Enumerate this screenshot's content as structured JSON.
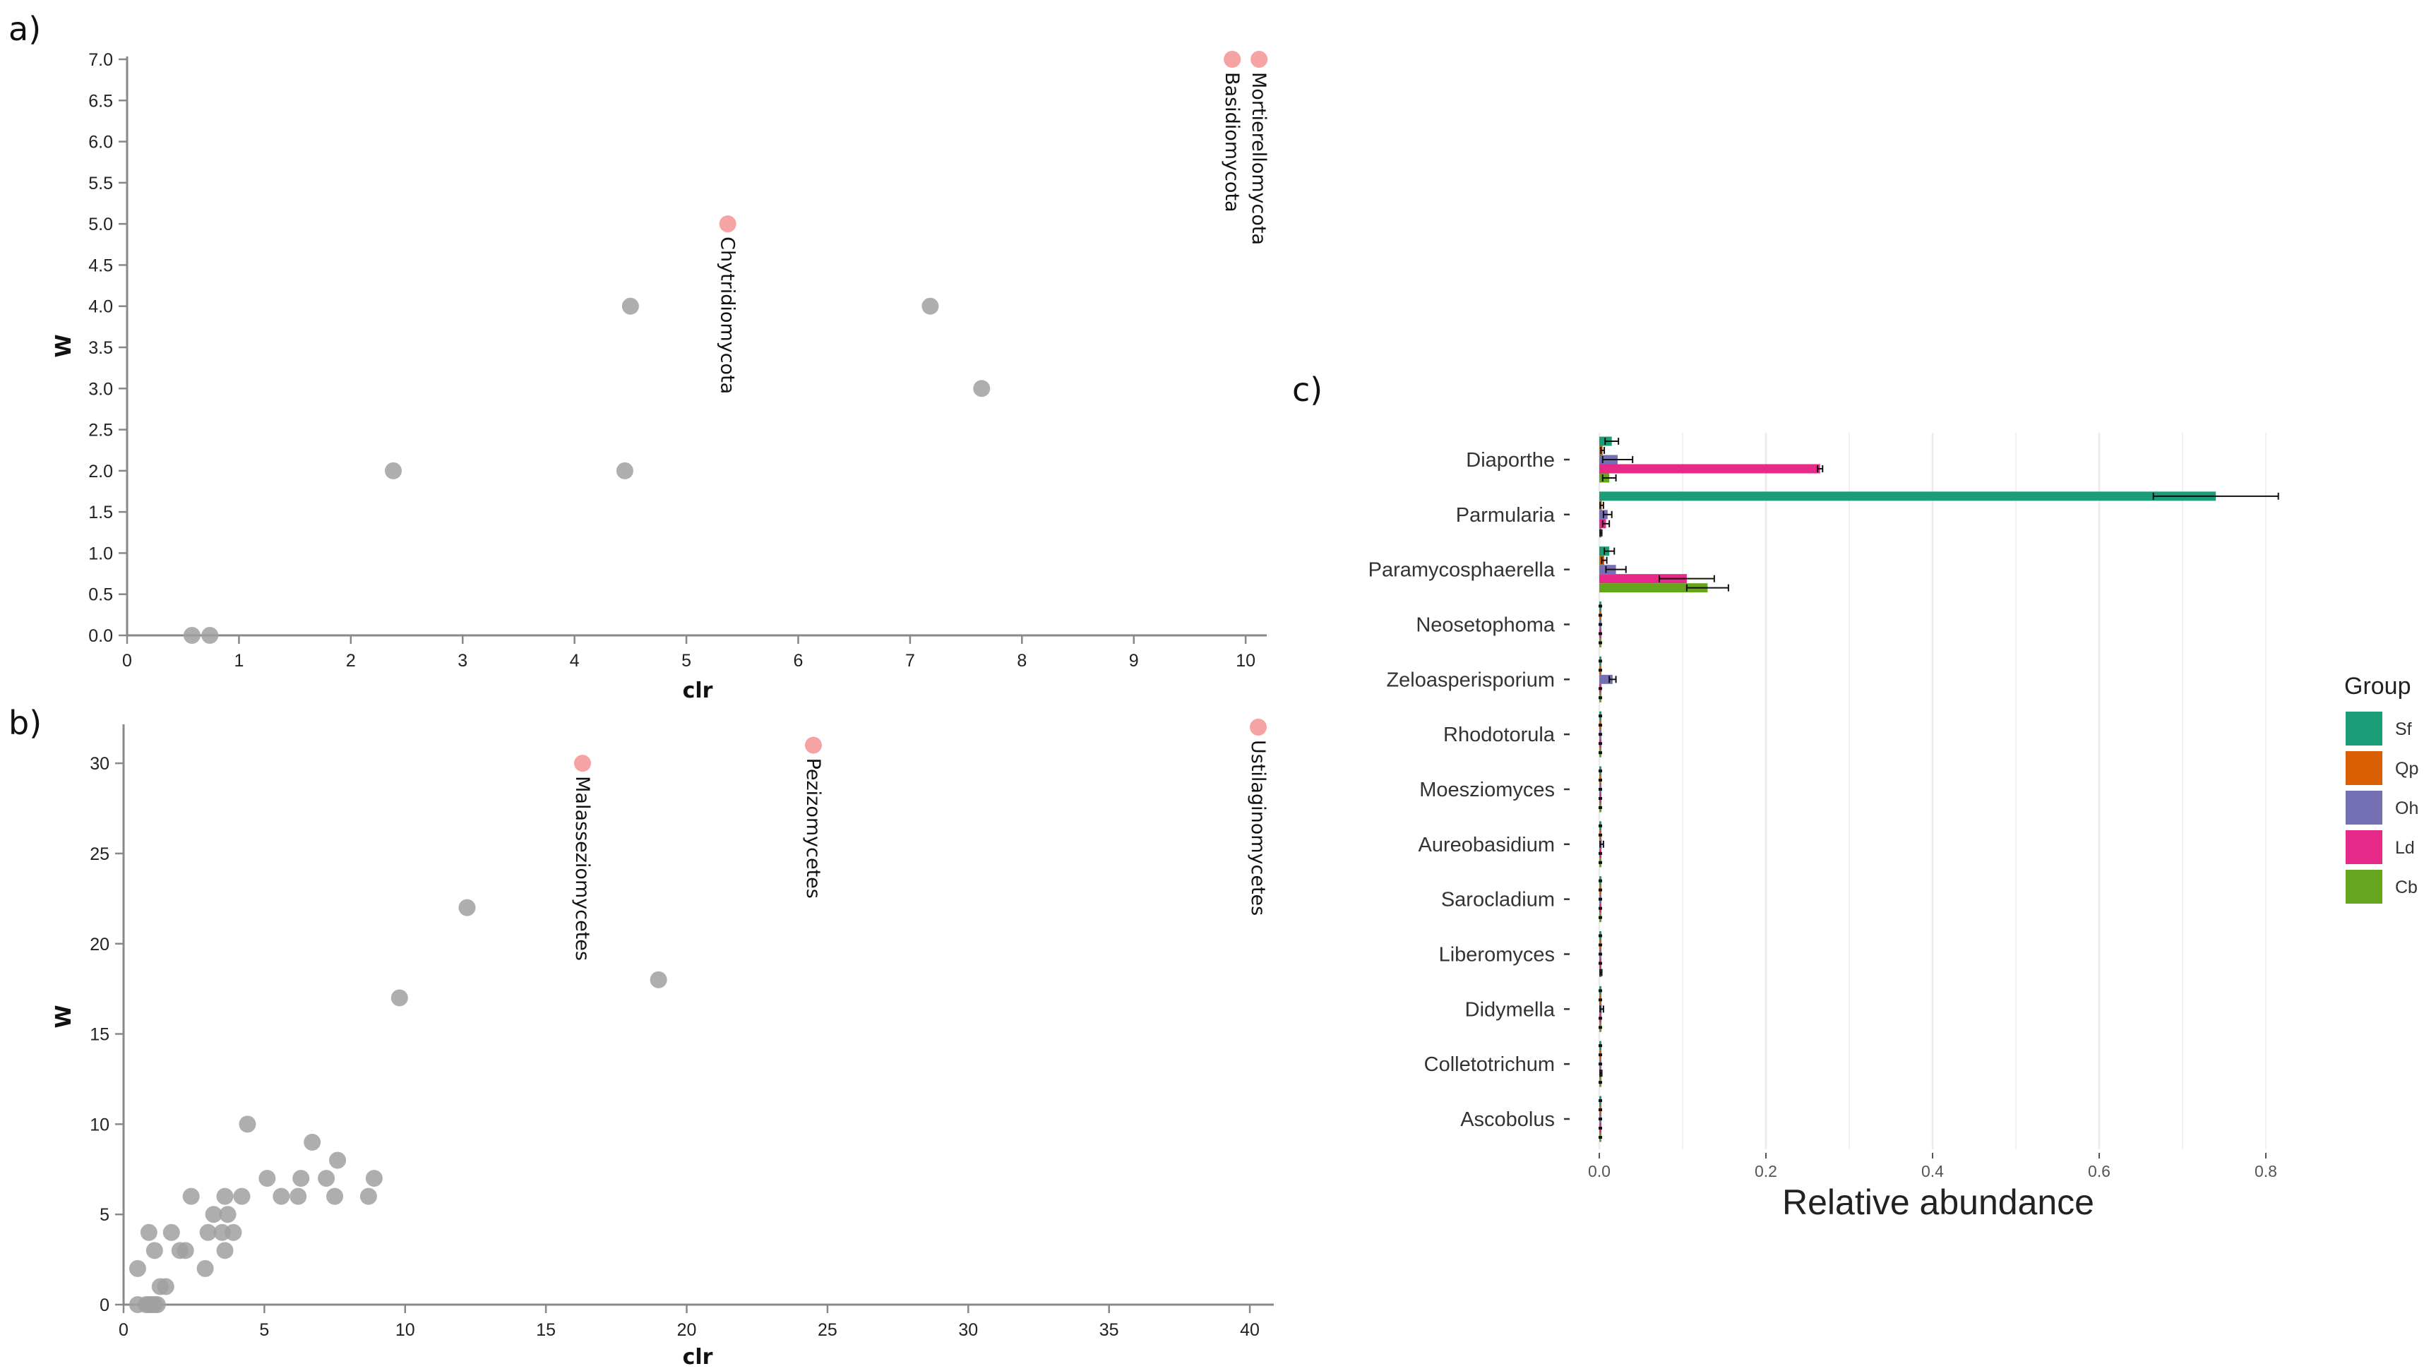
{
  "chart_data": [
    {
      "panel": "a)",
      "type": "scatter",
      "xlabel": "clr",
      "ylabel": "W",
      "xlim": [
        0,
        10.1
      ],
      "ylim": [
        0,
        7.0
      ],
      "xticks": [
        0,
        1,
        2,
        3,
        4,
        5,
        6,
        7,
        8,
        9,
        10
      ],
      "yticks": [
        "0.0",
        "0.5",
        "1.0",
        "1.5",
        "2.0",
        "2.5",
        "3.0",
        "3.5",
        "4.0",
        "4.5",
        "5.0",
        "5.5",
        "6.0",
        "6.5",
        "7.0"
      ],
      "points": [
        {
          "x": 0.58,
          "y": 0,
          "highlight": false,
          "label": ""
        },
        {
          "x": 0.74,
          "y": 0,
          "highlight": false,
          "label": ""
        },
        {
          "x": 2.38,
          "y": 2,
          "highlight": false,
          "label": ""
        },
        {
          "x": 4.45,
          "y": 2,
          "highlight": false,
          "label": ""
        },
        {
          "x": 4.5,
          "y": 4,
          "highlight": false,
          "label": ""
        },
        {
          "x": 7.18,
          "y": 4,
          "highlight": false,
          "label": ""
        },
        {
          "x": 7.64,
          "y": 3,
          "highlight": false,
          "label": ""
        },
        {
          "x": 5.37,
          "y": 5,
          "highlight": true,
          "label": "Chytridiomycota"
        },
        {
          "x": 9.88,
          "y": 7,
          "highlight": true,
          "label": "Basidiomycota"
        },
        {
          "x": 10.12,
          "y": 7,
          "highlight": true,
          "label": "Mortierellomycota"
        }
      ]
    },
    {
      "panel": "b)",
      "type": "scatter",
      "xlabel": "clr",
      "ylabel": "W",
      "xlim": [
        0,
        40.5
      ],
      "ylim": [
        0,
        32
      ],
      "xticks": [
        0,
        5,
        10,
        15,
        20,
        25,
        30,
        35,
        40
      ],
      "yticks": [
        0,
        5,
        10,
        15,
        20,
        25,
        30
      ],
      "points": [
        {
          "x": 0.5,
          "y": 0,
          "highlight": false,
          "label": ""
        },
        {
          "x": 0.8,
          "y": 0,
          "highlight": false,
          "label": ""
        },
        {
          "x": 0.9,
          "y": 0,
          "highlight": false,
          "label": ""
        },
        {
          "x": 1.0,
          "y": 0,
          "highlight": false,
          "label": ""
        },
        {
          "x": 1.1,
          "y": 0,
          "highlight": false,
          "label": ""
        },
        {
          "x": 1.2,
          "y": 0,
          "highlight": false,
          "label": ""
        },
        {
          "x": 0.5,
          "y": 2,
          "highlight": false,
          "label": ""
        },
        {
          "x": 0.9,
          "y": 4,
          "highlight": false,
          "label": ""
        },
        {
          "x": 1.1,
          "y": 3,
          "highlight": false,
          "label": ""
        },
        {
          "x": 1.3,
          "y": 1,
          "highlight": false,
          "label": ""
        },
        {
          "x": 1.5,
          "y": 1,
          "highlight": false,
          "label": ""
        },
        {
          "x": 1.7,
          "y": 4,
          "highlight": false,
          "label": ""
        },
        {
          "x": 2.0,
          "y": 3,
          "highlight": false,
          "label": ""
        },
        {
          "x": 2.2,
          "y": 3,
          "highlight": false,
          "label": ""
        },
        {
          "x": 2.4,
          "y": 6,
          "highlight": false,
          "label": ""
        },
        {
          "x": 2.9,
          "y": 2,
          "highlight": false,
          "label": ""
        },
        {
          "x": 3.0,
          "y": 4,
          "highlight": false,
          "label": ""
        },
        {
          "x": 3.2,
          "y": 5,
          "highlight": false,
          "label": ""
        },
        {
          "x": 3.5,
          "y": 4,
          "highlight": false,
          "label": ""
        },
        {
          "x": 3.6,
          "y": 6,
          "highlight": false,
          "label": ""
        },
        {
          "x": 3.6,
          "y": 3,
          "highlight": false,
          "label": ""
        },
        {
          "x": 3.7,
          "y": 5,
          "highlight": false,
          "label": ""
        },
        {
          "x": 3.9,
          "y": 4,
          "highlight": false,
          "label": ""
        },
        {
          "x": 4.2,
          "y": 6,
          "highlight": false,
          "label": ""
        },
        {
          "x": 4.4,
          "y": 10,
          "highlight": false,
          "label": ""
        },
        {
          "x": 5.1,
          "y": 7,
          "highlight": false,
          "label": ""
        },
        {
          "x": 5.6,
          "y": 6,
          "highlight": false,
          "label": ""
        },
        {
          "x": 6.2,
          "y": 6,
          "highlight": false,
          "label": ""
        },
        {
          "x": 6.3,
          "y": 7,
          "highlight": false,
          "label": ""
        },
        {
          "x": 6.7,
          "y": 9,
          "highlight": false,
          "label": ""
        },
        {
          "x": 7.2,
          "y": 7,
          "highlight": false,
          "label": ""
        },
        {
          "x": 7.5,
          "y": 6,
          "highlight": false,
          "label": ""
        },
        {
          "x": 7.6,
          "y": 8,
          "highlight": false,
          "label": ""
        },
        {
          "x": 8.7,
          "y": 6,
          "highlight": false,
          "label": ""
        },
        {
          "x": 8.9,
          "y": 7,
          "highlight": false,
          "label": ""
        },
        {
          "x": 9.8,
          "y": 17,
          "highlight": false,
          "label": ""
        },
        {
          "x": 12.2,
          "y": 22,
          "highlight": false,
          "label": ""
        },
        {
          "x": 19.0,
          "y": 18,
          "highlight": false,
          "label": ""
        },
        {
          "x": 16.3,
          "y": 30,
          "highlight": true,
          "label": "Malasseziomycetes"
        },
        {
          "x": 24.5,
          "y": 31,
          "highlight": true,
          "label": "Pezizomycetes"
        },
        {
          "x": 40.3,
          "y": 32,
          "highlight": true,
          "label": "Ustilaginomycetes"
        }
      ]
    },
    {
      "panel": "c)",
      "type": "bar",
      "orientation": "horizontal",
      "xlabel": "Relative abundance",
      "xlim": [
        0,
        0.84
      ],
      "xticks": [
        "0.0",
        "0.2",
        "0.4",
        "0.6",
        "0.8"
      ],
      "legend_title": "Group",
      "categories": [
        "Diaporthe",
        "Parmularia",
        "Paramycosphaerella",
        "Neosetophoma",
        "Zeloasperisporium",
        "Rhodotorula",
        "Moesziomyces",
        "Aureobasidium",
        "Sarocladium",
        "Liberomyces",
        "Didymella",
        "Colletotrichum",
        "Ascobolus"
      ],
      "series": [
        {
          "name": "Sf",
          "color": "#1b9e77",
          "values": [
            0.015,
            0.74,
            0.012,
            0,
            0.001,
            0,
            0,
            0.001,
            0,
            0,
            0,
            0,
            0
          ],
          "errors": [
            0.008,
            0.075,
            0.006,
            0,
            0,
            0,
            0,
            0,
            0,
            0,
            0,
            0,
            0
          ]
        },
        {
          "name": "Qp",
          "color": "#d95f02",
          "values": [
            0.004,
            0.003,
            0.006,
            0,
            0,
            0,
            0,
            0,
            0,
            0,
            0,
            0,
            0
          ],
          "errors": [
            0.002,
            0.002,
            0.003,
            0,
            0,
            0,
            0,
            0,
            0,
            0,
            0,
            0,
            0
          ]
        },
        {
          "name": "Oh",
          "color": "#7570b3",
          "values": [
            0.022,
            0.01,
            0.02,
            0.001,
            0.016,
            0,
            0,
            0.003,
            0,
            0,
            0.003,
            0,
            0
          ],
          "errors": [
            0.018,
            0.005,
            0.012,
            0,
            0.004,
            0,
            0,
            0.002,
            0,
            0,
            0.002,
            0,
            0
          ]
        },
        {
          "name": "Ld",
          "color": "#e7298a",
          "values": [
            0.265,
            0.008,
            0.105,
            0,
            0,
            0,
            0,
            0,
            0,
            0,
            0,
            0.002,
            0
          ],
          "errors": [
            0.003,
            0.004,
            0.033,
            0,
            0,
            0,
            0,
            0,
            0,
            0,
            0,
            0.001,
            0
          ]
        },
        {
          "name": "Cb",
          "color": "#66a61e",
          "values": [
            0.012,
            0.002,
            0.13,
            0,
            0,
            0,
            0,
            0,
            0,
            0.002,
            0,
            0,
            0
          ],
          "errors": [
            0.008,
            0.001,
            0.025,
            0,
            0,
            0,
            0,
            0,
            0,
            0.001,
            0,
            0,
            0
          ]
        }
      ]
    }
  ],
  "colors": {
    "point_default": "#a0a0a0",
    "point_highlight": "#f5a3a3"
  }
}
